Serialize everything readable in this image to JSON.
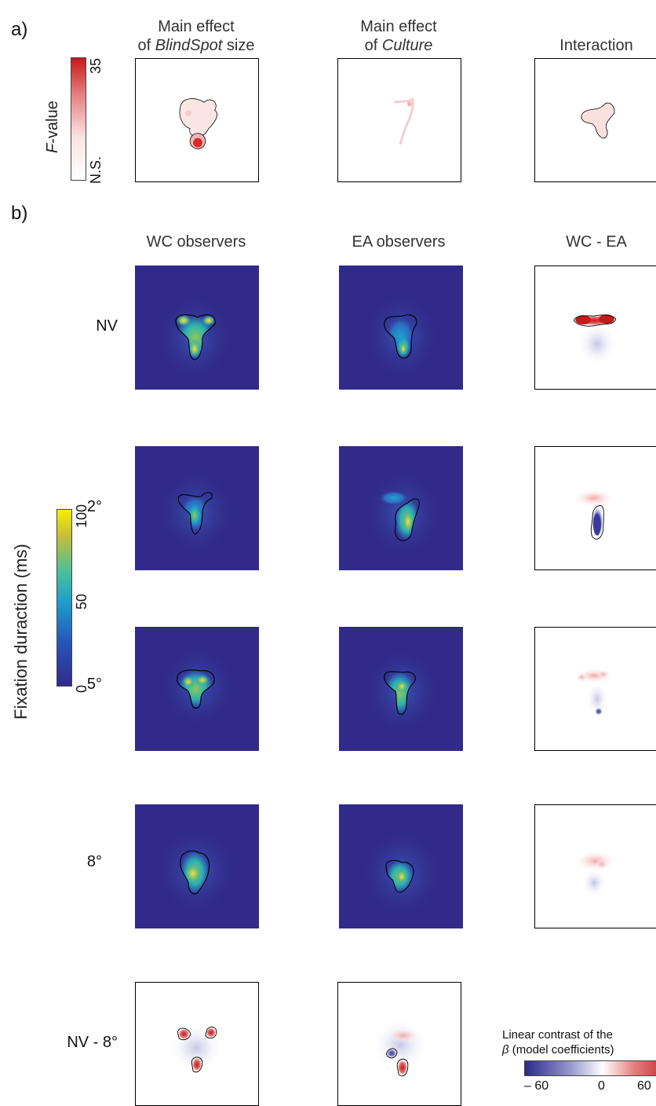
{
  "panel_labels": {
    "a": "a)",
    "b": "b)"
  },
  "section_a": {
    "col_titles": [
      {
        "line1": "Main effect",
        "line2_pre": "of ",
        "line2_ital": "BlindSpot",
        "line2_post": " size"
      },
      {
        "line1": "Main effect",
        "line2_pre": "of ",
        "line2_ital": "Culture",
        "line2_post": ""
      },
      {
        "line1": "Interaction",
        "line2_pre": "",
        "line2_ital": "",
        "line2_post": ""
      }
    ],
    "colorbar": {
      "label_ital": "F",
      "label_rest": "-value",
      "max_tick": "35",
      "min_tick": "N.S.",
      "colors": {
        "low": "#ffffff",
        "high": "#c41a1a"
      }
    }
  },
  "section_b": {
    "col_titles": [
      "WC observers",
      "EA observers",
      "WC - EA"
    ],
    "row_labels": [
      "NV",
      "2°",
      "5°",
      "8°",
      "NV - 8°"
    ],
    "fixation_colorbar": {
      "label": "Fixation duraction (ms)",
      "ticks": [
        "0",
        "50",
        "100"
      ],
      "colors": [
        "#312a8a",
        "#1f8fc9",
        "#2cb8a0",
        "#f0c030",
        "#f7f000"
      ]
    },
    "beta_colorbar": {
      "title_line1": "Linear contrast of the",
      "title_line2_ital": "β",
      "title_line2_rest": " (model coefficients)",
      "ticks": [
        "– 60",
        "0",
        "60"
      ],
      "colors": {
        "neg": "#2a2a8a",
        "mid": "#ffffff",
        "pos": "#b01010"
      }
    },
    "heatmap_background": "#312a8a"
  }
}
